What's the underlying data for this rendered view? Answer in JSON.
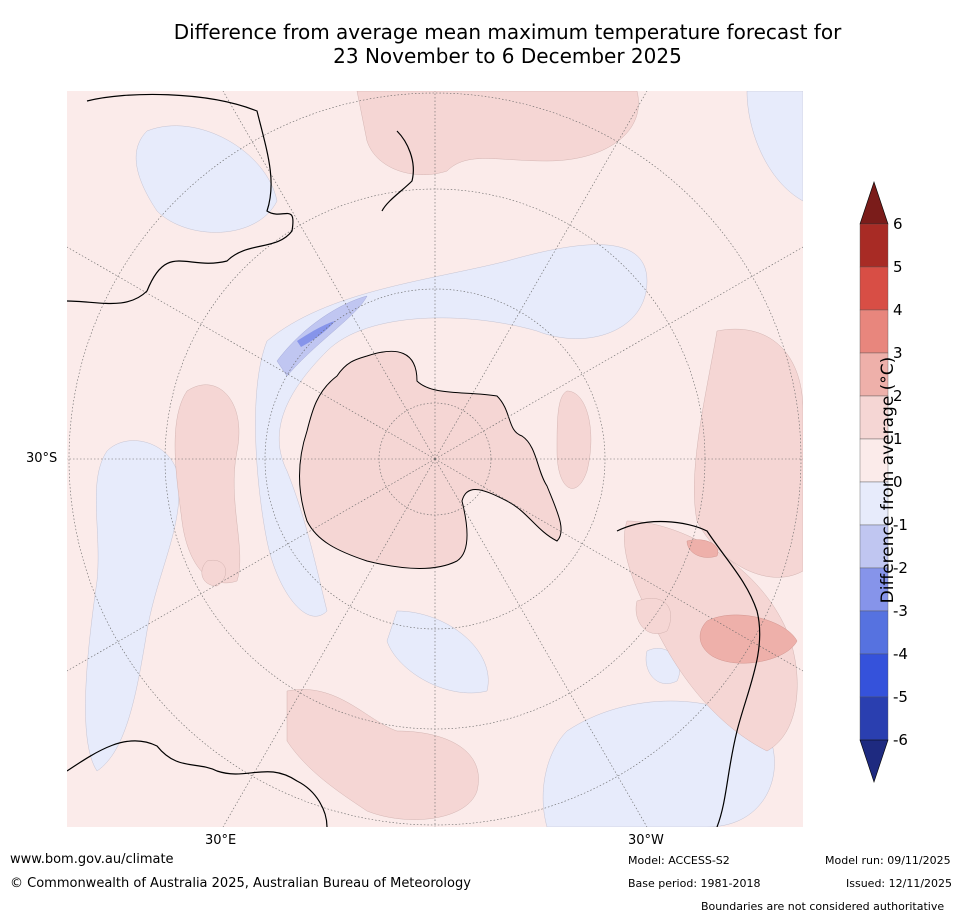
{
  "title": {
    "line1": "Difference from average mean maximum temperature forecast for",
    "line2": "23 November to 6 December 2025"
  },
  "map": {
    "projection": "south polar stereographic",
    "lat_label": "30°S",
    "lon_labels": [
      "30°E",
      "30°W"
    ]
  },
  "colorbar": {
    "title": "Difference from average (°C)",
    "ticks": [
      "6",
      "5",
      "4",
      "3",
      "2",
      "1",
      "0",
      "-1",
      "-2",
      "-3",
      "-4",
      "-5",
      "-6"
    ],
    "colors": [
      "#7a1c1a",
      "#a82b25",
      "#d84e45",
      "#e8867d",
      "#eeb0aa",
      "#f5d6d4",
      "#fbebea",
      "#e7ebfb",
      "#c0c6f1",
      "#8694ea",
      "#5672e0",
      "#3552db",
      "#2a3fb0",
      "#1e2a80"
    ]
  },
  "footer": {
    "url": "www.bom.gov.au/climate",
    "copyright": "© Commonwealth of Australia 2025, Australian Bureau of Meteorology",
    "model": "Model: ACCESS-S2",
    "base_period": "Base period: 1981-2018",
    "model_run": "Model run: 09/11/2025",
    "issued": "Issued: 12/11/2025",
    "disclaimer": "Boundaries are not considered authoritative"
  }
}
